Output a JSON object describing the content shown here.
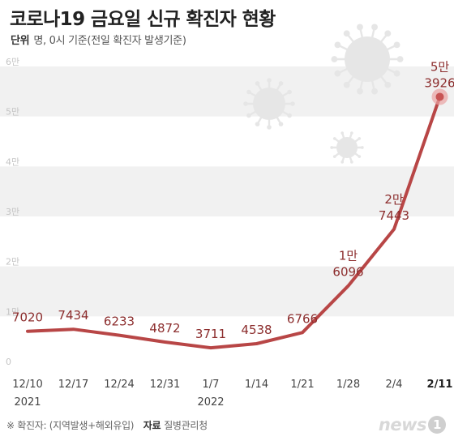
{
  "title": "코로나19 금요일 신규 확진자 현황",
  "subtitle": {
    "unit_key": "단위",
    "unit_text": "명, 0시 기준(전일 확진자 발생기준)"
  },
  "footer": {
    "note": "※ 확진자: (지역발생+해외유입)",
    "source_key": "자료",
    "source": "질병관리청"
  },
  "logo": {
    "text": "news",
    "badge": "1"
  },
  "chart_data": {
    "type": "line",
    "title": "코로나19 금요일 신규 확진자 현황",
    "xlabel": "",
    "ylabel": "",
    "x": [
      "12/10",
      "12/17",
      "12/24",
      "12/31",
      "1/7",
      "1/14",
      "1/21",
      "1/28",
      "2/4",
      "2/11"
    ],
    "x_year_labels": [
      {
        "index": 0,
        "text": "2021"
      },
      {
        "index": 4,
        "text": "2022"
      }
    ],
    "values": [
      7020,
      7434,
      6233,
      4872,
      3711,
      4538,
      6766,
      16096,
      27443,
      53926
    ],
    "point_labels": [
      [
        "7020"
      ],
      [
        "7434"
      ],
      [
        "6233"
      ],
      [
        "4872"
      ],
      [
        "3711"
      ],
      [
        "4538"
      ],
      [
        "6766"
      ],
      [
        "1만",
        "6096"
      ],
      [
        "2만",
        "7443"
      ],
      [
        "5만",
        "3926"
      ]
    ],
    "highlight_index": 9,
    "ylim": [
      0,
      60000
    ],
    "yticks": [
      0,
      10000,
      20000,
      30000,
      40000,
      50000,
      60000
    ],
    "ytick_labels": [
      "0",
      "1만",
      "2만",
      "3만",
      "4만",
      "5만",
      "6만"
    ],
    "grid": "alternating horizontal bands",
    "colors": {
      "line": "#b84646",
      "label": "#8c2d2d",
      "band": "#f1f1f1"
    }
  }
}
